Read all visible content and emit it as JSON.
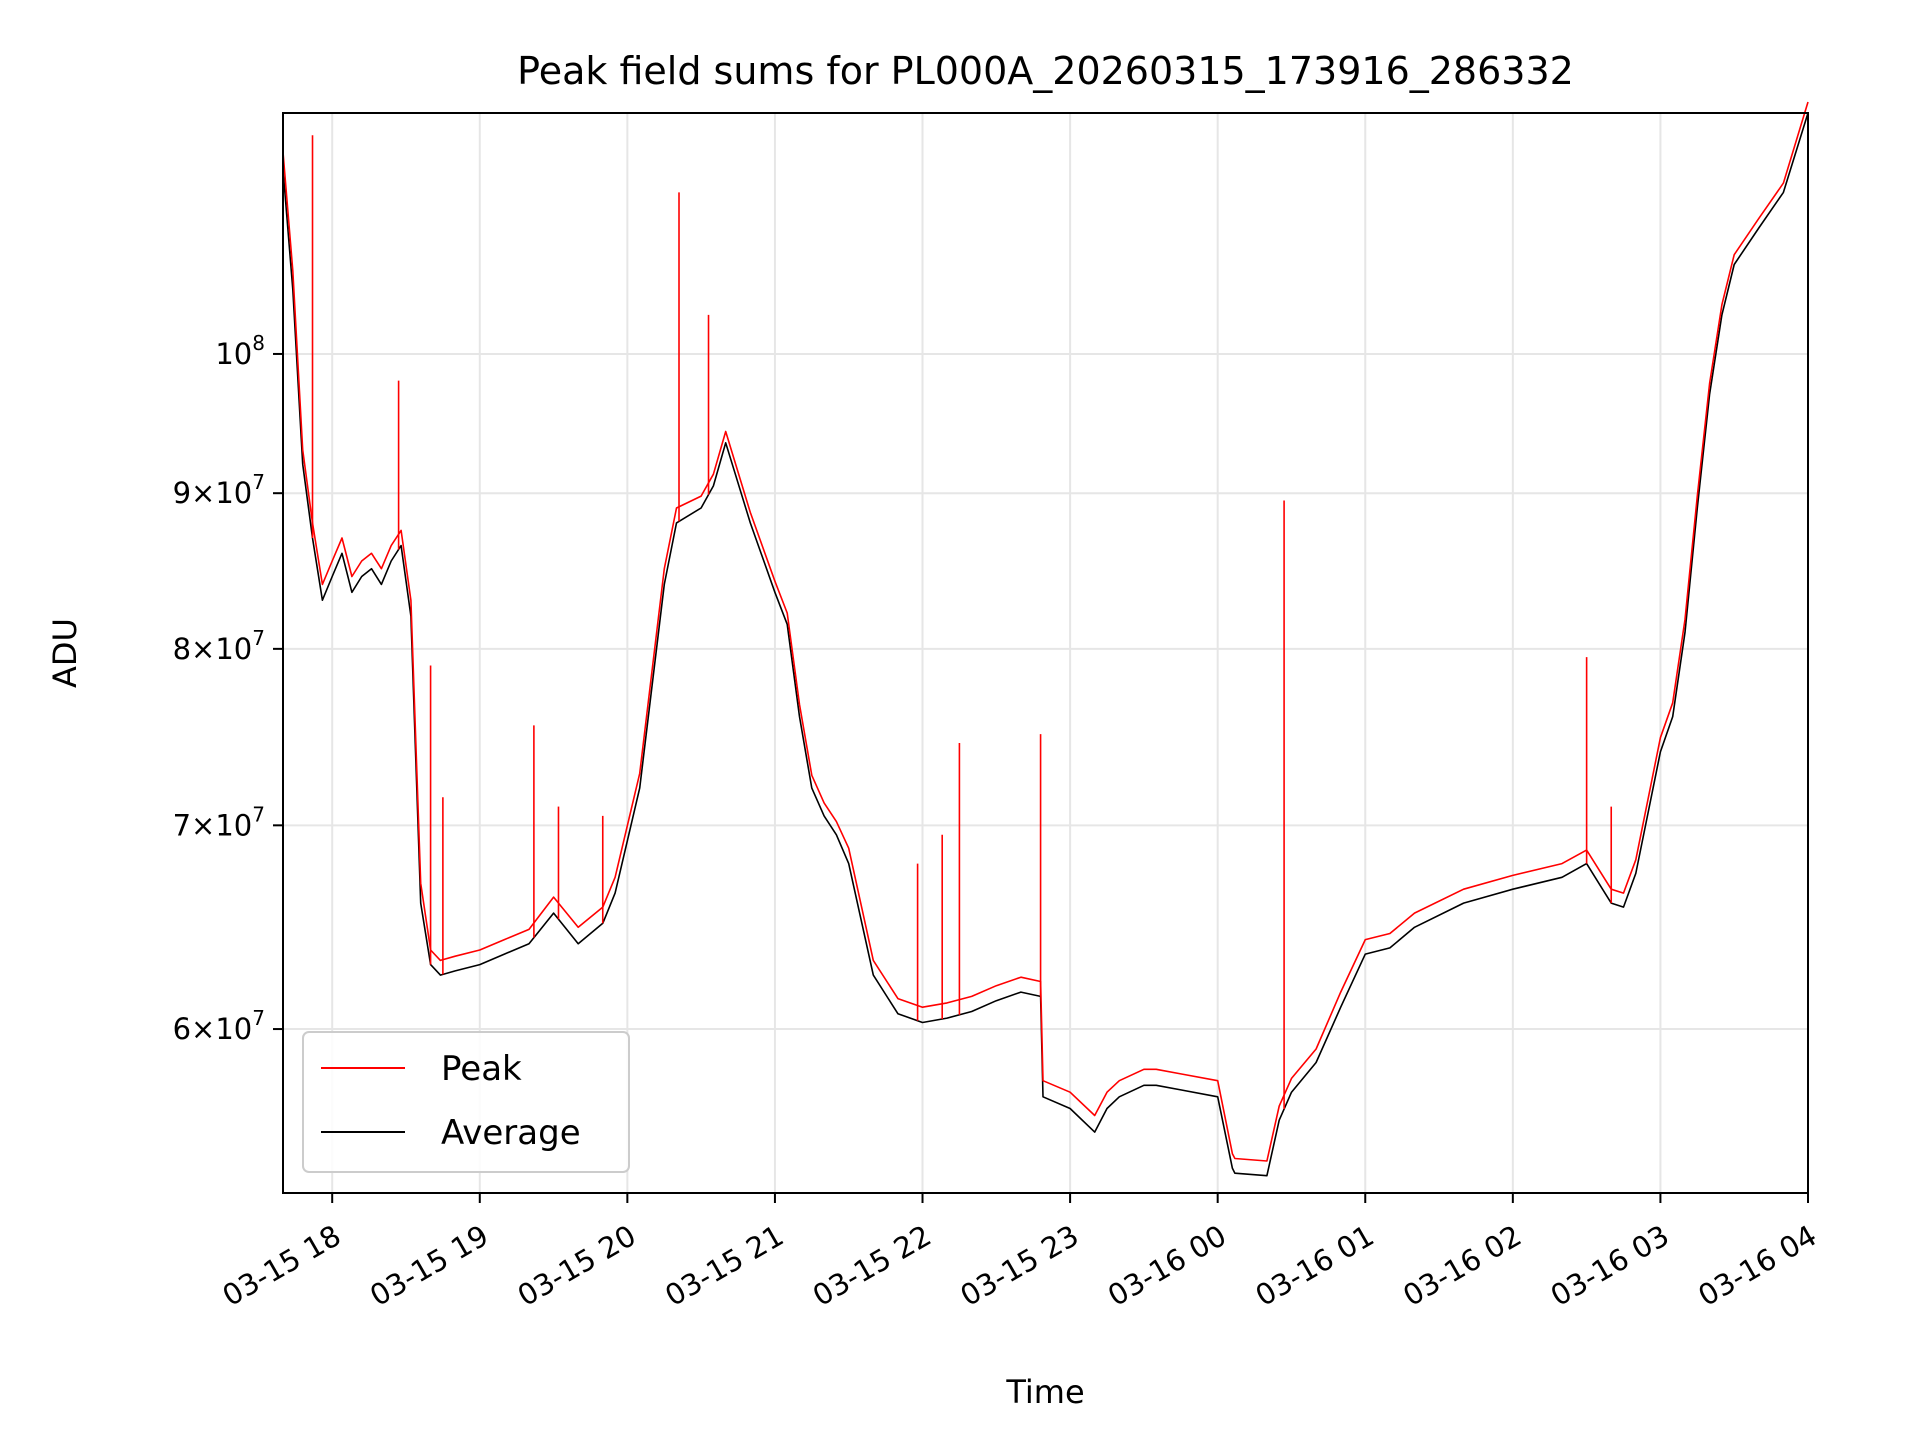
{
  "chart_data": {
    "type": "line",
    "title": "Peak field sums for PL000A_20260315_173916_286332",
    "xlabel": "Time",
    "ylabel": "ADU",
    "x_scale": "time",
    "y_scale": "log",
    "xlim": [
      "2026-03-15 17:40",
      "2026-03-16 04:00"
    ],
    "ylim": [
      53000000,
      120000000
    ],
    "grid": true,
    "legend_position": "lower-left",
    "x_ticks": [
      {
        "value": "2026-03-15 18:00",
        "label": "03-15 18"
      },
      {
        "value": "2026-03-15 19:00",
        "label": "03-15 19"
      },
      {
        "value": "2026-03-15 20:00",
        "label": "03-15 20"
      },
      {
        "value": "2026-03-15 21:00",
        "label": "03-15 21"
      },
      {
        "value": "2026-03-15 22:00",
        "label": "03-15 22"
      },
      {
        "value": "2026-03-15 23:00",
        "label": "03-15 23"
      },
      {
        "value": "2026-03-16 00:00",
        "label": "03-16 00"
      },
      {
        "value": "2026-03-16 01:00",
        "label": "03-16 01"
      },
      {
        "value": "2026-03-16 02:00",
        "label": "03-16 02"
      },
      {
        "value": "2026-03-16 03:00",
        "label": "03-16 03"
      },
      {
        "value": "2026-03-16 04:00",
        "label": "03-16 04"
      }
    ],
    "y_ticks": [
      {
        "value": 60000000,
        "mant": "6",
        "exp": "7"
      },
      {
        "value": 70000000,
        "mant": "7",
        "exp": "7"
      },
      {
        "value": 80000000,
        "mant": "8",
        "exp": "7"
      },
      {
        "value": 90000000,
        "mant": "9",
        "exp": "7"
      },
      {
        "value": 100000000,
        "mant": "",
        "exp": "8"
      }
    ],
    "series": [
      {
        "name": "Average",
        "color": "#000000",
        "x": [
          "2026-03-15 17:40",
          "2026-03-15 17:44",
          "2026-03-15 17:48",
          "2026-03-15 17:52",
          "2026-03-15 17:56",
          "2026-03-15 18:00",
          "2026-03-15 18:04",
          "2026-03-15 18:08",
          "2026-03-15 18:12",
          "2026-03-15 18:16",
          "2026-03-15 18:20",
          "2026-03-15 18:24",
          "2026-03-15 18:28",
          "2026-03-15 18:32",
          "2026-03-15 18:36",
          "2026-03-15 18:40",
          "2026-03-15 18:44",
          "2026-03-15 18:50",
          "2026-03-15 19:00",
          "2026-03-15 19:10",
          "2026-03-15 19:20",
          "2026-03-15 19:30",
          "2026-03-15 19:40",
          "2026-03-15 19:50",
          "2026-03-15 19:55",
          "2026-03-15 20:05",
          "2026-03-15 20:15",
          "2026-03-15 20:20",
          "2026-03-15 20:30",
          "2026-03-15 20:35",
          "2026-03-15 20:40",
          "2026-03-15 20:50",
          "2026-03-15 21:00",
          "2026-03-15 21:05",
          "2026-03-15 21:10",
          "2026-03-15 21:15",
          "2026-03-15 21:20",
          "2026-03-15 21:25",
          "2026-03-15 21:30",
          "2026-03-15 21:40",
          "2026-03-15 21:50",
          "2026-03-15 22:00",
          "2026-03-15 22:10",
          "2026-03-15 22:20",
          "2026-03-15 22:30",
          "2026-03-15 22:40",
          "2026-03-15 22:48",
          "2026-03-15 22:49",
          "2026-03-15 23:00",
          "2026-03-15 23:10",
          "2026-03-15 23:15",
          "2026-03-15 23:20",
          "2026-03-15 23:30",
          "2026-03-15 23:35",
          "2026-03-15 23:45",
          "2026-03-16 00:00",
          "2026-03-16 00:06",
          "2026-03-16 00:07",
          "2026-03-16 00:20",
          "2026-03-16 00:25",
          "2026-03-16 00:30",
          "2026-03-16 00:40",
          "2026-03-16 00:50",
          "2026-03-16 01:00",
          "2026-03-16 01:10",
          "2026-03-16 01:20",
          "2026-03-16 01:40",
          "2026-03-16 02:00",
          "2026-03-16 02:20",
          "2026-03-16 02:30",
          "2026-03-16 02:40",
          "2026-03-16 02:45",
          "2026-03-16 02:50",
          "2026-03-16 03:00",
          "2026-03-16 03:05",
          "2026-03-16 03:10",
          "2026-03-16 03:15",
          "2026-03-16 03:20",
          "2026-03-16 03:25",
          "2026-03-16 03:30",
          "2026-03-16 03:40",
          "2026-03-16 03:50",
          "2026-03-16 04:00"
        ],
        "y": [
          115000000,
          105000000,
          92000000,
          87000000,
          83000000,
          84500000,
          86000000,
          83500000,
          84500000,
          85000000,
          84000000,
          85500000,
          86500000,
          82000000,
          66000000,
          63000000,
          62500000,
          62700000,
          63000000,
          63500000,
          64000000,
          65500000,
          64000000,
          65000000,
          66500000,
          72000000,
          84000000,
          88000000,
          89000000,
          90500000,
          93500000,
          88000000,
          83500000,
          81500000,
          76000000,
          72000000,
          70500000,
          69500000,
          68000000,
          62500000,
          60700000,
          60300000,
          60500000,
          60800000,
          61300000,
          61700000,
          61500000,
          57000000,
          56500000,
          55500000,
          56500000,
          57000000,
          57500000,
          57500000,
          57300000,
          57000000,
          54000000,
          53800000,
          53700000,
          56000000,
          57200000,
          58500000,
          61000000,
          63500000,
          63800000,
          64800000,
          66000000,
          66700000,
          67300000,
          68000000,
          66000000,
          65800000,
          67500000,
          74000000,
          76000000,
          81000000,
          89000000,
          97000000,
          103000000,
          107000000,
          110000000,
          113000000,
          120000000
        ]
      },
      {
        "name": "Peak",
        "color": "#ff0000",
        "x": [
          "2026-03-15 17:40",
          "2026-03-15 17:44",
          "2026-03-15 17:48",
          "2026-03-15 17:52",
          "2026-03-15 17:56",
          "2026-03-15 18:00",
          "2026-03-15 18:04",
          "2026-03-15 18:08",
          "2026-03-15 18:12",
          "2026-03-15 18:16",
          "2026-03-15 18:20",
          "2026-03-15 18:24",
          "2026-03-15 18:28",
          "2026-03-15 18:32",
          "2026-03-15 18:36",
          "2026-03-15 18:40",
          "2026-03-15 18:44",
          "2026-03-15 18:50",
          "2026-03-15 19:00",
          "2026-03-15 19:10",
          "2026-03-15 19:20",
          "2026-03-15 19:30",
          "2026-03-15 19:40",
          "2026-03-15 19:50",
          "2026-03-15 19:55",
          "2026-03-15 20:05",
          "2026-03-15 20:15",
          "2026-03-15 20:20",
          "2026-03-15 20:30",
          "2026-03-15 20:35",
          "2026-03-15 20:40",
          "2026-03-15 20:50",
          "2026-03-15 21:00",
          "2026-03-15 21:05",
          "2026-03-15 21:10",
          "2026-03-15 21:15",
          "2026-03-15 21:20",
          "2026-03-15 21:25",
          "2026-03-15 21:30",
          "2026-03-15 21:40",
          "2026-03-15 21:50",
          "2026-03-15 22:00",
          "2026-03-15 22:10",
          "2026-03-15 22:20",
          "2026-03-15 22:30",
          "2026-03-15 22:40",
          "2026-03-15 22:48",
          "2026-03-15 22:49",
          "2026-03-15 23:00",
          "2026-03-15 23:10",
          "2026-03-15 23:15",
          "2026-03-15 23:20",
          "2026-03-15 23:30",
          "2026-03-15 23:35",
          "2026-03-15 23:45",
          "2026-03-16 00:00",
          "2026-03-16 00:06",
          "2026-03-16 00:07",
          "2026-03-16 00:20",
          "2026-03-16 00:25",
          "2026-03-16 00:30",
          "2026-03-16 00:40",
          "2026-03-16 00:50",
          "2026-03-16 01:00",
          "2026-03-16 01:10",
          "2026-03-16 01:20",
          "2026-03-16 01:40",
          "2026-03-16 02:00",
          "2026-03-16 02:20",
          "2026-03-16 02:30",
          "2026-03-16 02:40",
          "2026-03-16 02:45",
          "2026-03-16 02:50",
          "2026-03-16 03:00",
          "2026-03-16 03:05",
          "2026-03-16 03:10",
          "2026-03-16 03:15",
          "2026-03-16 03:20",
          "2026-03-16 03:25",
          "2026-03-16 03:30",
          "2026-03-16 03:40",
          "2026-03-16 03:50",
          "2026-03-16 04:00"
        ],
        "y": [
          116500000,
          106500000,
          93000000,
          88000000,
          84000000,
          85500000,
          87000000,
          84500000,
          85500000,
          86000000,
          85000000,
          86500000,
          87500000,
          83000000,
          67000000,
          63700000,
          63200000,
          63400000,
          63700000,
          64200000,
          64700000,
          66300000,
          64800000,
          65800000,
          67300000,
          72800000,
          85000000,
          89000000,
          89800000,
          91300000,
          94300000,
          88700000,
          84200000,
          82200000,
          76700000,
          72700000,
          71200000,
          70200000,
          68800000,
          63200000,
          61400000,
          61000000,
          61200000,
          61500000,
          62000000,
          62400000,
          62200000,
          57700000,
          57200000,
          56200000,
          57200000,
          57700000,
          58200000,
          58200000,
          58000000,
          57700000,
          54600000,
          54400000,
          54300000,
          56600000,
          57800000,
          59100000,
          61700000,
          64200000,
          64500000,
          65500000,
          66700000,
          67400000,
          68000000,
          68700000,
          66700000,
          66500000,
          68200000,
          74800000,
          76800000,
          81800000,
          89800000,
          97800000,
          103800000,
          107800000,
          110800000,
          113800000,
          121000000
        ]
      }
    ],
    "spikes": {
      "x": [
        "2026-03-15 17:52",
        "2026-03-15 18:27",
        "2026-03-15 18:40",
        "2026-03-15 18:45",
        "2026-03-15 19:22",
        "2026-03-15 19:32",
        "2026-03-15 19:50",
        "2026-03-15 20:21",
        "2026-03-15 20:33",
        "2026-03-15 21:58",
        "2026-03-15 22:08",
        "2026-03-15 22:15",
        "2026-03-15 22:48",
        "2026-03-16 00:27",
        "2026-03-16 02:30",
        "2026-03-16 02:40"
      ],
      "y": [
        118000000,
        98000000,
        79000000,
        71500000,
        75500000,
        71000000,
        70500000,
        113000000,
        103000000,
        68000000,
        69500000,
        74500000,
        75000000,
        89500000,
        79500000,
        71000000
      ]
    },
    "legend": [
      {
        "label": "Peak",
        "color": "#ff0000"
      },
      {
        "label": "Average",
        "color": "#000000"
      }
    ]
  }
}
